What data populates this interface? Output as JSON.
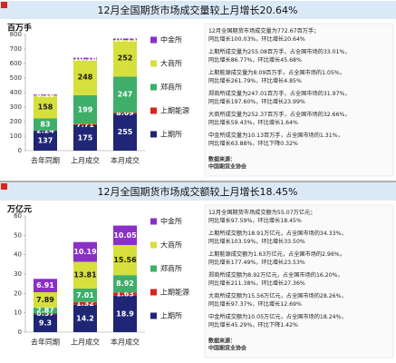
{
  "chart_data": [
    {
      "type": "bar",
      "stacked": true,
      "title": "12月全国期货市场成交量较上月增长20.64%",
      "y_label": "百万手",
      "categories": [
        "去年同期",
        "上月成交",
        "本月成交"
      ],
      "ylim": [
        0,
        800
      ],
      "yticks": [
        0,
        100,
        200,
        300,
        400,
        500,
        600,
        700,
        800
      ],
      "series": [
        {
          "name": "上期所",
          "color": "#1f2675",
          "values": [
            137,
            175,
            255
          ]
        },
        {
          "name": "上期能源",
          "color": "#d9261c",
          "values": [
            2.24,
            7.71,
            8.09
          ]
        },
        {
          "name": "郑商所",
          "color": "#3fae6a",
          "values": [
            83,
            199,
            247
          ]
        },
        {
          "name": "大商所",
          "color": "#d6df3c",
          "values": [
            158,
            248,
            252
          ]
        },
        {
          "name": "中金所",
          "color": "#8a2fc8",
          "values": [
            6.18,
            10.16,
            10.13
          ]
        }
      ],
      "annotations": [
        [
          "12月全国期货市场成交量为772.67百万手；",
          "同比增长100.03%，环比增长20.64%"
        ],
        [
          "上期所成交量为255.08百万手，占全国市场的33.01%，",
          "同比增长86.77%，环比增长45.68%"
        ],
        [
          "上期能源成交量为8.09百万手，占全国市场的1.05%，",
          "同比增长261.79%，环比增长4.85%"
        ],
        [
          "郑商所成交量为247.01百万手，占全国市场的31.97%，",
          "同比增长197.60%，环比增长23.99%"
        ],
        [
          "大商所成交量为252.37百万手，占全国市场的32.66%，",
          "同比增长59.43%，环比增长1.64%"
        ],
        [
          "中金所成交量为10.13百万手，占全国市场的1.31%，",
          "同比增长63.88%，环比下降0.32%"
        ]
      ],
      "source": [
        "数据来源：",
        "中国期货业协会"
      ]
    },
    {
      "type": "bar",
      "stacked": true,
      "title": "12月全国期货市场成交额较上月增长18.45%",
      "y_label": "万亿元",
      "categories": [
        "去年同期",
        "上月成交",
        "本月成交"
      ],
      "ylim": [
        0,
        60
      ],
      "yticks": [
        0,
        10,
        20,
        30,
        40,
        50,
        60
      ],
      "series": [
        {
          "name": "上期所",
          "color": "#1f2675",
          "values": [
            9.3,
            14.2,
            18.9
          ]
        },
        {
          "name": "上期能源",
          "color": "#d9261c",
          "values": [
            0.57,
            1.32,
            1.63
          ]
        },
        {
          "name": "郑商所",
          "color": "#3fae6a",
          "values": [
            2.87,
            7.01,
            8.92
          ]
        },
        {
          "name": "大商所",
          "color": "#d6df3c",
          "values": [
            7.89,
            13.81,
            15.56
          ]
        },
        {
          "name": "中金所",
          "color": "#8a2fc8",
          "values": [
            6.91,
            10.19,
            10.05
          ]
        }
      ],
      "annotations": [
        [
          "12月全国期货市场成交额为55.07万亿元；",
          "同比增长97.59%，环比增长18.45%"
        ],
        [
          "上期所成交额为18.91万亿元，占全国市场的34.33%，",
          "同比增长103.59%，环比增长33.50%"
        ],
        [
          "上期能源成交额为1.63万亿元，占全国市场的2.96%，",
          "同比增长177.49%，环比增长23.53%"
        ],
        [
          "郑商所成交额为8.92万亿元，占全国市场的16.20%，",
          "同比增长211.38%，环比增长27.36%"
        ],
        [
          "大商所成交额为15.56万亿元，占全国市场的28.26%，",
          "同比增长97.37%，环比增长12.69%"
        ],
        [
          "中金所成交额为10.05万亿元，占全国市场的18.24%，",
          "同比增长45.29%，环比下降1.42%"
        ]
      ],
      "source": [
        "数据来源：",
        "中国期货业协会"
      ]
    }
  ]
}
